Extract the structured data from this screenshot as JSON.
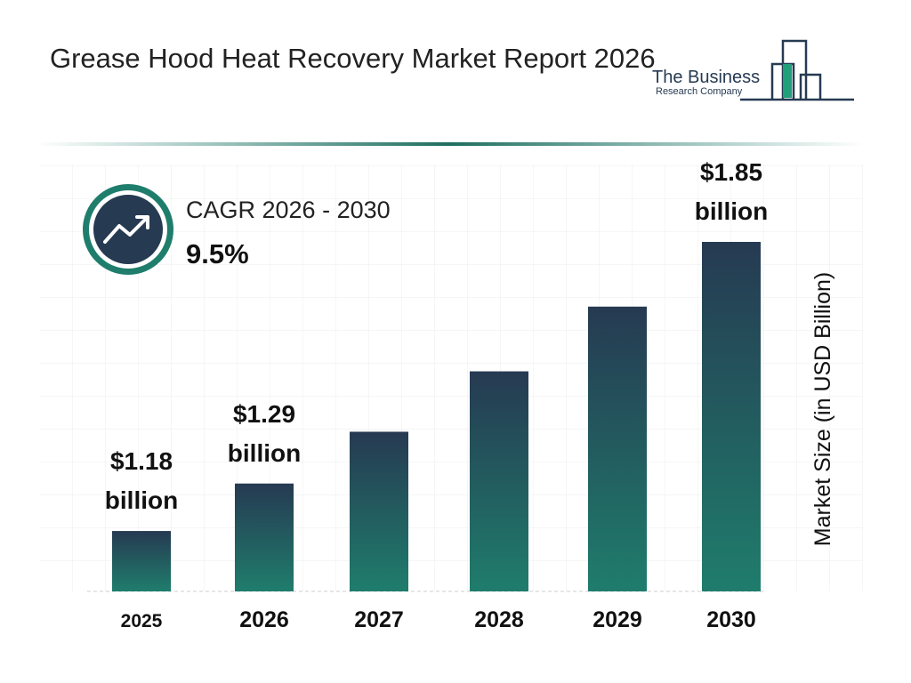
{
  "chart_data": {
    "type": "bar",
    "title": "Grease Hood Heat Recovery Market Report 2026",
    "categories": [
      "2025",
      "2026",
      "2027",
      "2028",
      "2029",
      "2030"
    ],
    "values": [
      1.18,
      1.29,
      1.41,
      1.55,
      1.7,
      1.85
    ],
    "value_labels": [
      "$1.18 billion",
      "$1.29 billion",
      null,
      null,
      null,
      "$1.85 billion"
    ],
    "ylim": [
      1.04,
      1.85
    ],
    "y_label": "Market Size (in USD Billion)",
    "cagr_label": "CAGR 2026 - 2030",
    "cagr_value": "9.5%"
  },
  "logo": {
    "line1": "The Business",
    "line2": "Research Company"
  }
}
